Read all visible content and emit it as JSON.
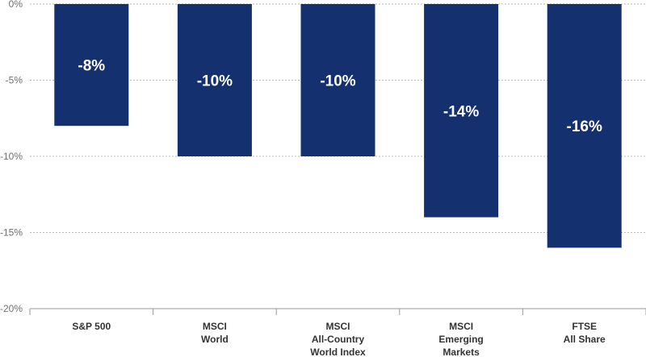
{
  "chart_data": {
    "type": "bar",
    "categories": [
      [
        "S&P 500"
      ],
      [
        "MSCI",
        "World"
      ],
      [
        "MSCI",
        "All-Country",
        "World Index"
      ],
      [
        "MSCI",
        "Emerging",
        "Markets"
      ],
      [
        "FTSE",
        "All Share"
      ]
    ],
    "values": [
      -8,
      -10,
      -10,
      -14,
      -16
    ],
    "data_labels": [
      "-8%",
      "-10%",
      "-10%",
      "-14%",
      "-16%"
    ],
    "yticks": [
      0,
      -5,
      -10,
      -15,
      -20
    ],
    "ytick_labels": [
      "0%",
      "-5%",
      "-10%",
      "-15%",
      "-20%"
    ],
    "ylim": [
      -20,
      0
    ],
    "title": "",
    "xlabel": "",
    "ylabel": "",
    "grid": "horizontal dotted",
    "legend": "none",
    "colors": {
      "bar": "#14306e",
      "grid": "#b8b8b8",
      "axis": "#9a9a9a",
      "tick_text": "#6f6f6f",
      "category_text": "#333333",
      "data_label_text": "#ffffff"
    }
  }
}
